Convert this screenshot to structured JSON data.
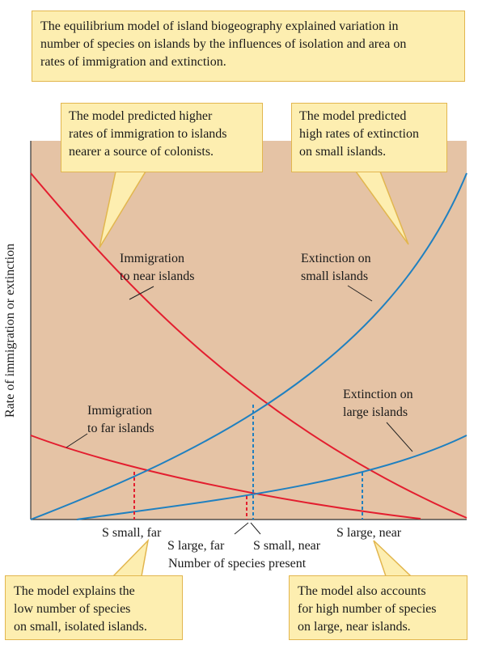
{
  "top_note": {
    "lines": [
      "The equilibrium model of island biogeography explained variation in",
      "number of species on islands by the influences of isolation and area on",
      "rates of immigration and extinction."
    ]
  },
  "callouts": {
    "immigration": [
      "The model predicted higher",
      "rates of immigration to islands",
      "nearer a source of colonists."
    ],
    "extinction": [
      "The model predicted",
      "high rates of extinction",
      "on small islands."
    ],
    "small_isolated": [
      "The model explains the",
      "low number of species",
      "on small, isolated islands."
    ],
    "large_near": [
      "The model also accounts",
      "for high number of species",
      "on large, near islands."
    ]
  },
  "curve_labels": {
    "imm_near": [
      "Immigration",
      "to near islands"
    ],
    "ext_small": [
      "Extinction on",
      "small islands"
    ],
    "imm_far": [
      "Immigration",
      "to far islands"
    ],
    "ext_large": [
      "Extinction on",
      "large islands"
    ]
  },
  "axes": {
    "ylabel": "Rate of immigration or extinction",
    "xlabel": "Number of species present"
  },
  "equilibria": {
    "s_small_far": "S small, far",
    "s_large_far": "S large, far",
    "s_small_near": "S small, near",
    "s_large_near": "S large, near"
  },
  "colors": {
    "plot_background": "#e5c3a5",
    "immigration": "#e31e2f",
    "extinction": "#1f80c0",
    "callout_fill": "#fdeeb0",
    "callout_border": "#e2b64e"
  }
}
